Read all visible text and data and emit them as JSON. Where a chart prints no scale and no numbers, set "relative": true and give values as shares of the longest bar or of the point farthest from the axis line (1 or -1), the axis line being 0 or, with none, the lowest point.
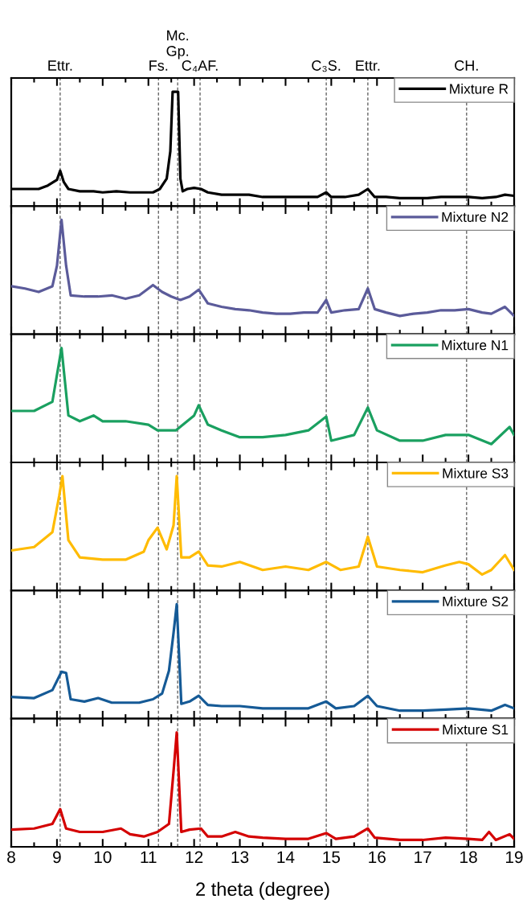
{
  "chart_data": [
    {
      "type": "line",
      "relative": true,
      "xlim": [
        8,
        19
      ],
      "xticks": [
        8,
        9,
        10,
        11,
        12,
        13,
        14,
        15,
        16,
        17,
        18,
        19
      ],
      "tick_labels": false,
      "legend": "top right",
      "line_style": "solid",
      "marker": "none",
      "ref_lines": [
        {
          "axis": "x",
          "value": 9.07,
          "label": "Ettr.",
          "color": "#555555",
          "line_style": "dashed"
        },
        {
          "axis": "x",
          "value": 11.22,
          "label": "Fs.",
          "color": "#555555",
          "line_style": "dashed"
        },
        {
          "axis": "x",
          "value": 11.64,
          "label": "Mc.\nGp.",
          "color": "#555555",
          "line_style": "dashed"
        },
        {
          "axis": "x",
          "value": 12.13,
          "label": "C₄AF.",
          "color": "#555555",
          "line_style": "dashed"
        },
        {
          "axis": "x",
          "value": 14.89,
          "label": "C₃S.",
          "color": "#555555",
          "line_style": "dashed"
        },
        {
          "axis": "x",
          "value": 15.8,
          "label": "Ettr.",
          "color": "#555555",
          "line_style": "dashed"
        },
        {
          "axis": "x",
          "value": 17.96,
          "label": "CH.",
          "color": "#555555",
          "line_style": "dashed"
        }
      ],
      "series": [
        {
          "name": "Mixture R",
          "color": "#000000",
          "x": [
            8.0,
            8.3,
            8.6,
            8.8,
            9.0,
            9.07,
            9.15,
            9.25,
            9.5,
            9.8,
            10.0,
            10.3,
            10.6,
            10.9,
            11.1,
            11.25,
            11.4,
            11.48,
            11.53,
            11.65,
            11.7,
            11.75,
            11.85,
            12.0,
            12.15,
            12.3,
            12.6,
            12.9,
            13.2,
            13.5,
            13.8,
            14.1,
            14.4,
            14.7,
            14.89,
            15.0,
            15.3,
            15.6,
            15.8,
            15.95,
            16.2,
            16.5,
            16.8,
            17.1,
            17.4,
            17.7,
            18.0,
            18.3,
            18.6,
            18.8,
            19.0
          ],
          "values": [
            0.15,
            0.15,
            0.15,
            0.18,
            0.23,
            0.31,
            0.21,
            0.15,
            0.13,
            0.13,
            0.12,
            0.13,
            0.12,
            0.12,
            0.12,
            0.15,
            0.24,
            0.48,
            1,
            1,
            0.24,
            0.13,
            0.15,
            0.16,
            0.15,
            0.12,
            0.1,
            0.1,
            0.1,
            0.08,
            0.08,
            0.08,
            0.08,
            0.08,
            0.12,
            0.08,
            0.08,
            0.1,
            0.15,
            0.08,
            0.08,
            0.07,
            0.07,
            0.07,
            0.08,
            0.08,
            0.08,
            0.07,
            0.08,
            0.1,
            0.09
          ]
        }
      ]
    },
    {
      "type": "line",
      "relative": true,
      "xlim": [
        8,
        19
      ],
      "xticks": [
        8,
        9,
        10,
        11,
        12,
        13,
        14,
        15,
        16,
        17,
        18,
        19
      ],
      "tick_labels": false,
      "legend": "top right",
      "line_style": "solid",
      "marker": "none",
      "ref_lines": [
        {
          "axis": "x",
          "value": 9.07,
          "color": "#555555",
          "line_style": "dashed"
        },
        {
          "axis": "x",
          "value": 11.22,
          "color": "#555555",
          "line_style": "dashed"
        },
        {
          "axis": "x",
          "value": 11.64,
          "color": "#555555",
          "line_style": "dashed"
        },
        {
          "axis": "x",
          "value": 12.13,
          "color": "#555555",
          "line_style": "dashed"
        },
        {
          "axis": "x",
          "value": 14.89,
          "color": "#555555",
          "line_style": "dashed"
        },
        {
          "axis": "x",
          "value": 15.8,
          "color": "#555555",
          "line_style": "dashed"
        },
        {
          "axis": "x",
          "value": 17.96,
          "color": "#555555",
          "line_style": "dashed"
        }
      ],
      "series": [
        {
          "name": "Mixture N2",
          "color": "#5b5b9a",
          "x": [
            8.0,
            8.3,
            8.6,
            8.9,
            9.0,
            9.1,
            9.2,
            9.3,
            9.6,
            9.9,
            10.2,
            10.5,
            10.8,
            11.1,
            11.3,
            11.5,
            11.7,
            11.9,
            12.1,
            12.3,
            12.6,
            12.9,
            13.2,
            13.5,
            13.8,
            14.1,
            14.4,
            14.7,
            14.89,
            15.0,
            15.3,
            15.6,
            15.8,
            15.95,
            16.2,
            16.5,
            16.8,
            17.1,
            17.4,
            17.7,
            18.0,
            18.3,
            18.5,
            18.8,
            19.0
          ],
          "values": [
            0.42,
            0.4,
            0.37,
            0.42,
            0.6,
            1,
            0.6,
            0.34,
            0.33,
            0.33,
            0.34,
            0.31,
            0.34,
            0.43,
            0.37,
            0.33,
            0.3,
            0.33,
            0.39,
            0.27,
            0.24,
            0.22,
            0.21,
            0.19,
            0.18,
            0.18,
            0.19,
            0.19,
            0.3,
            0.19,
            0.21,
            0.22,
            0.4,
            0.22,
            0.19,
            0.16,
            0.18,
            0.19,
            0.21,
            0.21,
            0.22,
            0.19,
            0.18,
            0.24,
            0.16
          ]
        }
      ]
    },
    {
      "type": "line",
      "relative": true,
      "xlim": [
        8,
        19
      ],
      "xticks": [
        8,
        9,
        10,
        11,
        12,
        13,
        14,
        15,
        16,
        17,
        18,
        19
      ],
      "tick_labels": false,
      "legend": "top right",
      "line_style": "solid",
      "marker": "none",
      "ref_lines": [
        {
          "axis": "x",
          "value": 9.07,
          "color": "#555555",
          "line_style": "dashed"
        },
        {
          "axis": "x",
          "value": 11.22,
          "color": "#555555",
          "line_style": "dashed"
        },
        {
          "axis": "x",
          "value": 11.64,
          "color": "#555555",
          "line_style": "dashed"
        },
        {
          "axis": "x",
          "value": 12.13,
          "color": "#555555",
          "line_style": "dashed"
        },
        {
          "axis": "x",
          "value": 14.89,
          "color": "#555555",
          "line_style": "dashed"
        },
        {
          "axis": "x",
          "value": 15.8,
          "color": "#555555",
          "line_style": "dashed"
        },
        {
          "axis": "x",
          "value": 17.96,
          "color": "#555555",
          "line_style": "dashed"
        }
      ],
      "series": [
        {
          "name": "Mixture N1",
          "color": "#1aa060",
          "x": [
            8.0,
            8.5,
            8.9,
            9.1,
            9.25,
            9.5,
            9.8,
            10.0,
            10.5,
            11.0,
            11.2,
            11.6,
            12.0,
            12.1,
            12.3,
            12.6,
            13.0,
            13.5,
            14.0,
            14.5,
            14.89,
            15.0,
            15.5,
            15.8,
            16.0,
            16.5,
            17.0,
            17.5,
            18.0,
            18.5,
            18.9,
            19.0
          ],
          "values": [
            0.45,
            0.45,
            0.53,
            1,
            0.41,
            0.36,
            0.41,
            0.36,
            0.36,
            0.33,
            0.28,
            0.28,
            0.41,
            0.5,
            0.33,
            0.28,
            0.22,
            0.22,
            0.24,
            0.28,
            0.4,
            0.19,
            0.24,
            0.48,
            0.28,
            0.19,
            0.19,
            0.24,
            0.24,
            0.16,
            0.31,
            0.24
          ]
        }
      ]
    },
    {
      "type": "line",
      "relative": true,
      "xlim": [
        8,
        19
      ],
      "xticks": [
        8,
        9,
        10,
        11,
        12,
        13,
        14,
        15,
        16,
        17,
        18,
        19
      ],
      "tick_labels": false,
      "legend": "top right",
      "line_style": "solid",
      "marker": "none",
      "ref_lines": [
        {
          "axis": "x",
          "value": 9.07,
          "color": "#555555",
          "line_style": "dashed"
        },
        {
          "axis": "x",
          "value": 11.22,
          "color": "#555555",
          "line_style": "dashed"
        },
        {
          "axis": "x",
          "value": 11.64,
          "color": "#555555",
          "line_style": "dashed"
        },
        {
          "axis": "x",
          "value": 12.13,
          "color": "#555555",
          "line_style": "dashed"
        },
        {
          "axis": "x",
          "value": 14.89,
          "color": "#555555",
          "line_style": "dashed"
        },
        {
          "axis": "x",
          "value": 15.8,
          "color": "#555555",
          "line_style": "dashed"
        },
        {
          "axis": "x",
          "value": 17.96,
          "color": "#555555",
          "line_style": "dashed"
        }
      ],
      "series": [
        {
          "name": "Mixture S3",
          "color": "#ffbb00",
          "x": [
            8.0,
            8.5,
            8.9,
            9.05,
            9.12,
            9.25,
            9.5,
            10.0,
            10.5,
            10.9,
            11.0,
            11.2,
            11.4,
            11.55,
            11.62,
            11.72,
            11.9,
            12.1,
            12.3,
            12.6,
            13.0,
            13.5,
            14.0,
            14.5,
            14.89,
            15.2,
            15.6,
            15.8,
            16.0,
            16.5,
            17.0,
            17.5,
            17.8,
            18.0,
            18.3,
            18.5,
            18.8,
            19.0
          ],
          "values": [
            0.35,
            0.38,
            0.51,
            0.83,
            1,
            0.44,
            0.29,
            0.27,
            0.27,
            0.34,
            0.44,
            0.55,
            0.36,
            0.57,
            1,
            0.29,
            0.29,
            0.34,
            0.22,
            0.21,
            0.25,
            0.18,
            0.21,
            0.18,
            0.25,
            0.18,
            0.21,
            0.47,
            0.21,
            0.18,
            0.16,
            0.22,
            0.25,
            0.23,
            0.14,
            0.18,
            0.31,
            0.18
          ]
        }
      ]
    },
    {
      "type": "line",
      "relative": true,
      "xlim": [
        8,
        19
      ],
      "xticks": [
        8,
        9,
        10,
        11,
        12,
        13,
        14,
        15,
        16,
        17,
        18,
        19
      ],
      "tick_labels": false,
      "legend": "top right",
      "line_style": "solid",
      "marker": "none",
      "ref_lines": [
        {
          "axis": "x",
          "value": 9.07,
          "color": "#555555",
          "line_style": "dashed"
        },
        {
          "axis": "x",
          "value": 11.22,
          "color": "#555555",
          "line_style": "dashed"
        },
        {
          "axis": "x",
          "value": 11.64,
          "color": "#555555",
          "line_style": "dashed"
        },
        {
          "axis": "x",
          "value": 12.13,
          "color": "#555555",
          "line_style": "dashed"
        },
        {
          "axis": "x",
          "value": 14.89,
          "color": "#555555",
          "line_style": "dashed"
        },
        {
          "axis": "x",
          "value": 15.8,
          "color": "#555555",
          "line_style": "dashed"
        },
        {
          "axis": "x",
          "value": 17.96,
          "color": "#555555",
          "line_style": "dashed"
        }
      ],
      "series": [
        {
          "name": "Mixture S2",
          "color": "#155a96",
          "x": [
            8.0,
            8.5,
            8.9,
            9.1,
            9.2,
            9.3,
            9.6,
            9.9,
            10.2,
            10.5,
            10.8,
            11.1,
            11.3,
            11.45,
            11.55,
            11.62,
            11.72,
            11.9,
            12.1,
            12.3,
            12.6,
            13.0,
            13.5,
            14.0,
            14.5,
            14.89,
            15.1,
            15.5,
            15.8,
            16.0,
            16.5,
            17.0,
            17.5,
            18.0,
            18.5,
            18.8,
            19.0
          ],
          "values": [
            0.19,
            0.18,
            0.25,
            0.41,
            0.4,
            0.17,
            0.15,
            0.18,
            0.14,
            0.14,
            0.14,
            0.17,
            0.22,
            0.42,
            0.75,
            1,
            0.13,
            0.15,
            0.2,
            0.12,
            0.11,
            0.11,
            0.09,
            0.09,
            0.09,
            0.15,
            0.09,
            0.11,
            0.2,
            0.11,
            0.07,
            0.07,
            0.08,
            0.09,
            0.07,
            0.12,
            0.09
          ]
        }
      ]
    },
    {
      "type": "line",
      "relative": true,
      "xlim": [
        8,
        19
      ],
      "xticks": [
        8,
        9,
        10,
        11,
        12,
        13,
        14,
        15,
        16,
        17,
        18,
        19
      ],
      "tick_labels": "x",
      "xlabel": "2 theta (degree)",
      "legend": "top right",
      "line_style": "solid",
      "marker": "none",
      "ref_lines": [
        {
          "axis": "x",
          "value": 9.07,
          "color": "#555555",
          "line_style": "dashed"
        },
        {
          "axis": "x",
          "value": 11.22,
          "color": "#555555",
          "line_style": "dashed"
        },
        {
          "axis": "x",
          "value": 11.64,
          "color": "#555555",
          "line_style": "dashed"
        },
        {
          "axis": "x",
          "value": 12.13,
          "color": "#555555",
          "line_style": "dashed"
        },
        {
          "axis": "x",
          "value": 14.89,
          "color": "#555555",
          "line_style": "dashed"
        },
        {
          "axis": "x",
          "value": 15.8,
          "color": "#555555",
          "line_style": "dashed"
        },
        {
          "axis": "x",
          "value": 17.96,
          "color": "#555555",
          "line_style": "dashed"
        }
      ],
      "series": [
        {
          "name": "Mixture S1",
          "color": "#d40000",
          "x": [
            8.0,
            8.5,
            8.9,
            9.07,
            9.2,
            9.5,
            10.0,
            10.4,
            10.6,
            10.9,
            11.2,
            11.45,
            11.55,
            11.62,
            11.72,
            11.9,
            12.15,
            12.3,
            12.6,
            12.9,
            13.2,
            13.5,
            14.0,
            14.5,
            14.89,
            15.1,
            15.5,
            15.8,
            15.95,
            16.5,
            17.0,
            17.5,
            18.0,
            18.3,
            18.45,
            18.6,
            18.9,
            19.0
          ],
          "values": [
            0.15,
            0.16,
            0.2,
            0.33,
            0.16,
            0.13,
            0.13,
            0.16,
            0.11,
            0.09,
            0.13,
            0.2,
            0.66,
            1,
            0.13,
            0.15,
            0.16,
            0.09,
            0.09,
            0.13,
            0.09,
            0.08,
            0.07,
            0.07,
            0.12,
            0.07,
            0.09,
            0.16,
            0.08,
            0.06,
            0.06,
            0.08,
            0.07,
            0.06,
            0.13,
            0.06,
            0.11,
            0.07
          ]
        }
      ]
    }
  ]
}
